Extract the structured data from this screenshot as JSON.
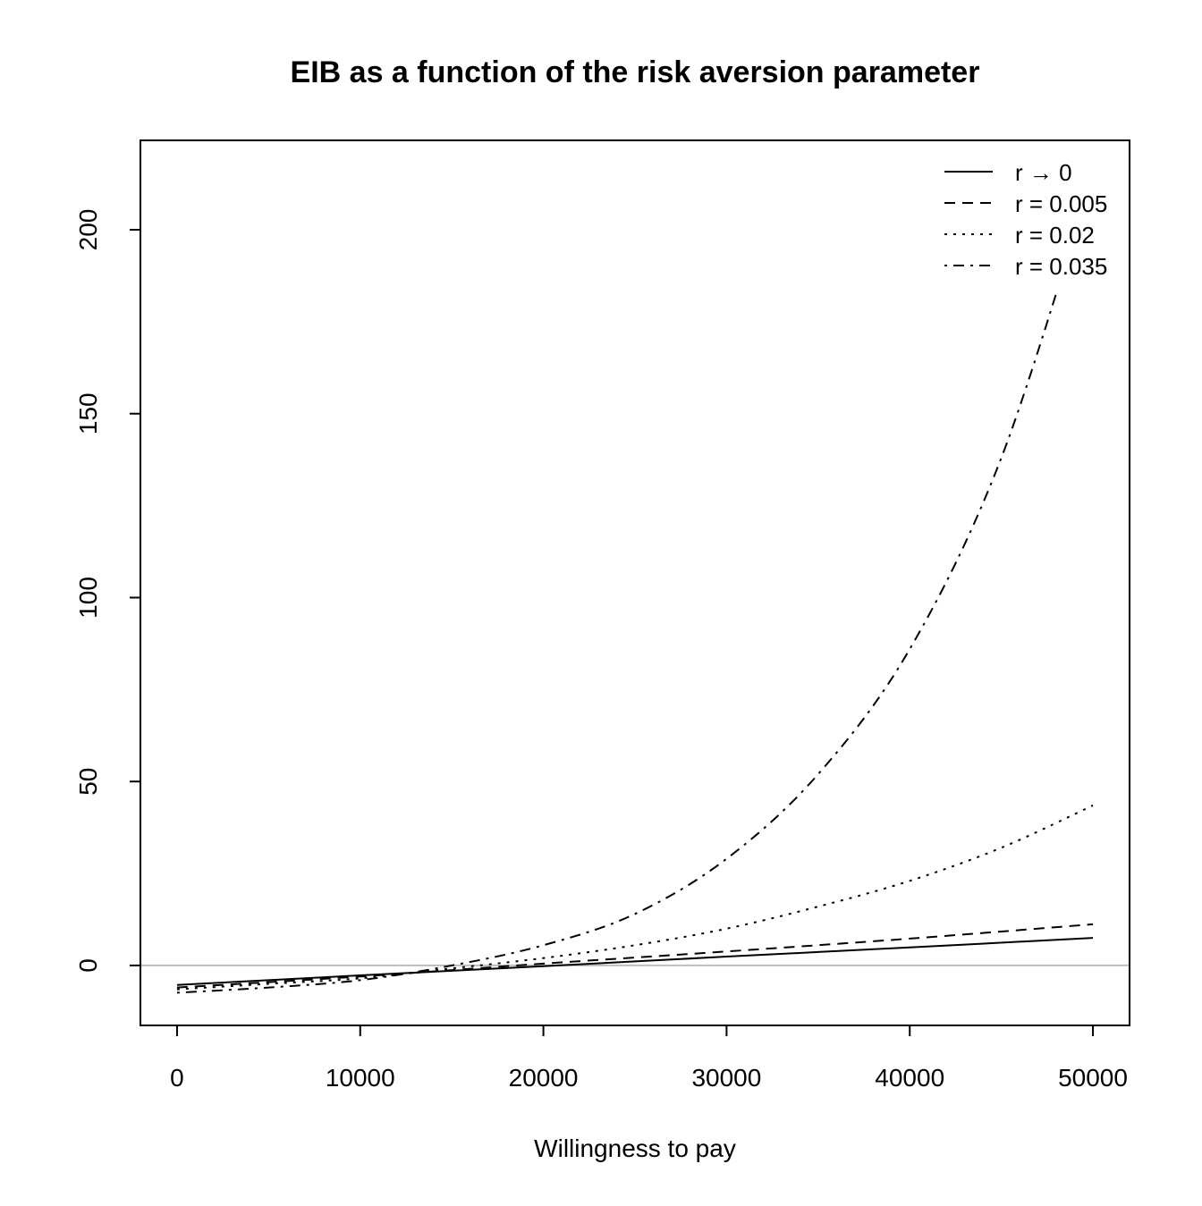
{
  "chart_data": {
    "type": "line",
    "title": "EIB as a function of the risk aversion parameter",
    "xlabel": "Willingness to pay",
    "ylabel": "",
    "xlim": [
      -2000,
      52000
    ],
    "ylim": [
      -16.3,
      224.3
    ],
    "x_ticks": [
      0,
      10000,
      20000,
      30000,
      40000,
      50000
    ],
    "x_tick_labels": [
      "0",
      "10000",
      "20000",
      "30000",
      "40000",
      "50000"
    ],
    "y_ticks": [
      0,
      50,
      100,
      150,
      200
    ],
    "y_tick_labels": [
      "0",
      "50",
      "100",
      "150",
      "200"
    ],
    "grid": false,
    "reference_line": {
      "y": 0,
      "color": "#bebebe"
    },
    "legend": {
      "placement": "top-right"
    },
    "series": [
      {
        "name": "r → 0",
        "linestyle": "solid",
        "color": "#000000",
        "x": [
          0,
          10000,
          20000,
          30000,
          40000,
          50000
        ],
        "y": [
          -5.3,
          -2.7,
          -0.2,
          2.4,
          4.9,
          7.5
        ]
      },
      {
        "name": "r = 0.005",
        "linestyle": "dashed",
        "color": "#000000",
        "x": [
          0,
          10000,
          20000,
          30000,
          40000,
          50000
        ],
        "y": [
          -6.0,
          -3.0,
          0.5,
          3.8,
          7.3,
          11.2
        ]
      },
      {
        "name": "r = 0.02",
        "linestyle": "dotted",
        "color": "#000000",
        "x": [
          0,
          5000,
          10000,
          15000,
          20000,
          25000,
          30000,
          35000,
          40000,
          45000,
          50000
        ],
        "y": [
          -6.5,
          -5.0,
          -3.5,
          -0.8,
          2.0,
          5.5,
          10.0,
          16.0,
          23.0,
          32.0,
          43.5
        ]
      },
      {
        "name": "r = 0.035",
        "linestyle": "dotdash",
        "color": "#000000",
        "x": [
          0,
          5000,
          10000,
          15000,
          20000,
          25000,
          30000,
          35000,
          40000,
          45000,
          50000
        ],
        "y": [
          -7.4,
          -6.0,
          -4.0,
          0.0,
          5.5,
          14.0,
          29.0,
          52.0,
          86.0,
          138.0,
          215.0
        ]
      }
    ]
  }
}
